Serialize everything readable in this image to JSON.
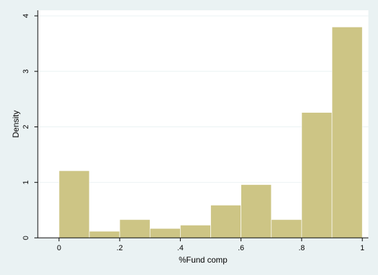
{
  "chart_data": {
    "type": "bar",
    "subtype": "histogram",
    "bin_width": 0.1,
    "bins": [
      {
        "x0": 0.0,
        "x1": 0.1,
        "density": 1.21
      },
      {
        "x0": 0.1,
        "x1": 0.2,
        "density": 0.12
      },
      {
        "x0": 0.2,
        "x1": 0.3,
        "density": 0.33
      },
      {
        "x0": 0.3,
        "x1": 0.4,
        "density": 0.17
      },
      {
        "x0": 0.4,
        "x1": 0.5,
        "density": 0.23
      },
      {
        "x0": 0.5,
        "x1": 0.6,
        "density": 0.59
      },
      {
        "x0": 0.6,
        "x1": 0.7,
        "density": 0.96
      },
      {
        "x0": 0.7,
        "x1": 0.8,
        "density": 0.33
      },
      {
        "x0": 0.8,
        "x1": 0.9,
        "density": 2.26
      },
      {
        "x0": 0.9,
        "x1": 1.0,
        "density": 3.8
      }
    ],
    "xlabel": "%Fund comp",
    "ylabel": "Density",
    "xlim": [
      -0.07,
      1.02
    ],
    "ylim": [
      0,
      4.1
    ],
    "x_ticks": [
      {
        "value": 0,
        "label": "0"
      },
      {
        "value": 0.2,
        "label": ".2"
      },
      {
        "value": 0.4,
        "label": ".4"
      },
      {
        "value": 0.6,
        "label": ".6"
      },
      {
        "value": 0.8,
        "label": ".8"
      },
      {
        "value": 1,
        "label": "1"
      }
    ],
    "y_ticks": [
      {
        "value": 0,
        "label": "0"
      },
      {
        "value": 1,
        "label": "1"
      },
      {
        "value": 2,
        "label": "2"
      },
      {
        "value": 3,
        "label": "3"
      },
      {
        "value": 4,
        "label": "4"
      }
    ],
    "grid": "horizontal",
    "colors": {
      "background": "#eaf2f3",
      "plot_background": "#ffffff",
      "bar_fill": "#cdc585",
      "bar_stroke": "#ffffff",
      "gridline": "#eaf2f3",
      "axis": "#000000"
    }
  }
}
